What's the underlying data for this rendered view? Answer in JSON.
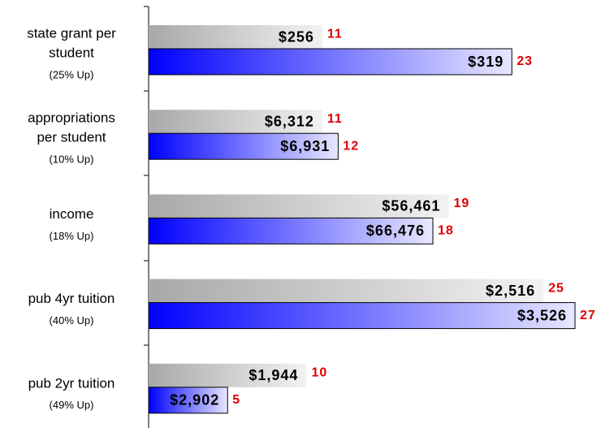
{
  "chart_data": {
    "type": "bar",
    "categories": [
      [
        "state grant per",
        "student"
      ],
      [
        "appropriations",
        "per student"
      ],
      [
        "income"
      ],
      [
        "pub 4yr tuition"
      ],
      [
        "pub 2yr tuition"
      ]
    ],
    "changes": [
      "(25% Up)",
      "(10% Up)",
      "(18% Up)",
      "(40% Up)",
      "(49% Up)"
    ],
    "series": [
      {
        "color": "#c8c8c8",
        "values": [
          256,
          6312,
          56461,
          2516,
          1944
        ],
        "value_labels": [
          "$256",
          "$6,312",
          "$56,461",
          "$2,516",
          "$1,944"
        ],
        "ranks": [
          11,
          11,
          19,
          25,
          10
        ]
      },
      {
        "color": "#0000ff",
        "values": [
          319,
          6931,
          66476,
          3526,
          2902
        ],
        "value_labels": [
          "$319",
          "$6,931",
          "$66,476",
          "$3,526",
          "$2,902"
        ],
        "ranks": [
          23,
          12,
          18,
          27,
          5
        ]
      }
    ],
    "rank_color": "#e00000"
  }
}
